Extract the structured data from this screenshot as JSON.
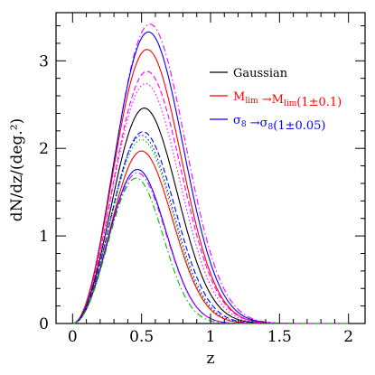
{
  "chart_data": {
    "type": "line",
    "title": "",
    "xlabel": "z",
    "ylabel": "dN/dz/(deg.²)",
    "xlim": [
      -0.12,
      2.12
    ],
    "ylim": [
      0,
      3.55
    ],
    "xticks": [
      0,
      0.5,
      1,
      1.5,
      2
    ],
    "xtick_labels": [
      "0",
      "0.5",
      "1",
      "1.5",
      "2"
    ],
    "yticks": [
      0,
      1,
      2,
      3
    ],
    "ytick_labels": [
      "0",
      "1",
      "2",
      "3"
    ],
    "grid": false,
    "legend_position": "top-right",
    "legend": [
      {
        "text": "Gaussian",
        "color": "#000000"
      },
      {
        "text": "M_lim →M_lim(1±0.1)",
        "color": "#ff0000",
        "parts": [
          {
            "t": "M",
            "sub": false
          },
          {
            "t": "lim",
            "sub": true
          },
          {
            "t": " →M",
            "sub": false
          },
          {
            "t": "lim",
            "sub": true
          },
          {
            "t": "(1±0.1)",
            "sub": false
          }
        ]
      },
      {
        "text": "σ_8 →σ_8(1±0.05)",
        "color": "#0000ff",
        "parts": [
          {
            "t": "σ",
            "sub": false
          },
          {
            "t": "8",
            "sub": true
          },
          {
            "t": " →σ",
            "sub": false
          },
          {
            "t": "8",
            "sub": true
          },
          {
            "t": "(1±0.05)",
            "sub": false
          }
        ]
      }
    ],
    "series": [
      {
        "color": "#ff00ff",
        "style": "dashdot",
        "peak": 3.42,
        "zpeak": 0.56,
        "k": 2.5
      },
      {
        "color": "#0000ff",
        "style": "solid",
        "peak": 3.33,
        "zpeak": 0.55,
        "k": 2.5
      },
      {
        "color": "#ff0000",
        "style": "solid",
        "peak": 3.13,
        "zpeak": 0.54,
        "k": 2.5
      },
      {
        "color": "#ff00ff",
        "style": "dashed",
        "peak": 2.88,
        "zpeak": 0.54,
        "k": 2.5
      },
      {
        "color": "#ff00ff",
        "style": "dotted",
        "peak": 2.74,
        "zpeak": 0.53,
        "k": 2.5
      },
      {
        "color": "#000000",
        "style": "solid",
        "peak": 2.46,
        "zpeak": 0.52,
        "k": 2.5
      },
      {
        "color": "#0000ff",
        "style": "dashed",
        "peak": 2.19,
        "zpeak": 0.51,
        "k": 2.55
      },
      {
        "color": "#0000ff",
        "style": "dotted",
        "peak": 2.15,
        "zpeak": 0.5,
        "k": 2.55
      },
      {
        "color": "#00bb00",
        "style": "dotted",
        "peak": 2.1,
        "zpeak": 0.5,
        "k": 2.6
      },
      {
        "color": "#ff0000",
        "style": "solid",
        "peak": 1.97,
        "zpeak": 0.5,
        "k": 2.6
      },
      {
        "color": "#0000ff",
        "style": "solid",
        "peak": 1.76,
        "zpeak": 0.47,
        "k": 2.7
      },
      {
        "color": "#ff00ff",
        "style": "dashdot",
        "peak": 1.72,
        "zpeak": 0.47,
        "k": 2.7
      },
      {
        "color": "#00bb00",
        "style": "dashdot",
        "peak": 1.66,
        "zpeak": 0.46,
        "k": 2.8
      }
    ]
  }
}
